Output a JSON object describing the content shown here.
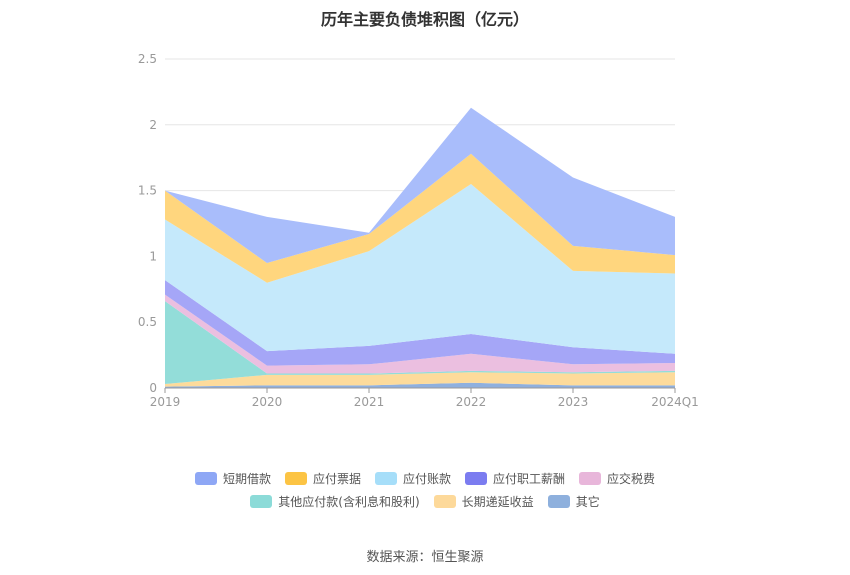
{
  "chart_data": {
    "type": "area",
    "stacked": true,
    "title": "历年主要负债堆积图（亿元）",
    "categories": [
      "2019",
      "2020",
      "2021",
      "2022",
      "2023",
      "2024Q1"
    ],
    "ylim": [
      0,
      2.5
    ],
    "yticks": [
      "0",
      "0.5",
      "1",
      "1.5",
      "2",
      "2.5"
    ],
    "grid": true,
    "legend_position": "bottom",
    "series": [
      {
        "name": "其它",
        "color": "#8fb0de",
        "values": [
          0.01,
          0.02,
          0.02,
          0.04,
          0.02,
          0.02
        ]
      },
      {
        "name": "长期递延收益",
        "color": "#fddb9b",
        "values": [
          0.02,
          0.08,
          0.08,
          0.08,
          0.09,
          0.1
        ]
      },
      {
        "name": "其他应付款(含利息和股利)",
        "color": "#93ddd9",
        "values": [
          0.63,
          0.01,
          0.01,
          0.01,
          0.01,
          0.01
        ]
      },
      {
        "name": "应交税费",
        "color": "#ebbfe0",
        "values": [
          0.05,
          0.06,
          0.07,
          0.13,
          0.06,
          0.06
        ]
      },
      {
        "name": "应付职工薪酬",
        "color": "#a5a6f7",
        "values": [
          0.11,
          0.11,
          0.14,
          0.15,
          0.13,
          0.07
        ]
      },
      {
        "name": "应付账款",
        "color": "#c5e9fb",
        "values": [
          0.46,
          0.52,
          0.72,
          1.14,
          0.58,
          0.61
        ]
      },
      {
        "name": "应付票据",
        "color": "#ffd67e",
        "values": [
          0.22,
          0.15,
          0.13,
          0.23,
          0.19,
          0.14
        ]
      },
      {
        "name": "短期借款",
        "color": "#a9bdfb",
        "values": [
          0.0,
          0.35,
          0.01,
          0.35,
          0.52,
          0.29
        ]
      }
    ]
  },
  "legend": {
    "row1": [
      {
        "label": "短期借款",
        "color": "#8ea7f5"
      },
      {
        "label": "应付票据",
        "color": "#fcc444"
      },
      {
        "label": "应付账款",
        "color": "#a6def9"
      },
      {
        "label": "应付职工薪酬",
        "color": "#7b7cf0"
      },
      {
        "label": "应交税费",
        "color": "#e8b6da"
      }
    ],
    "row2": [
      {
        "label": "其他应付款(含利息和股利)",
        "color": "#8cdbd8"
      },
      {
        "label": "长期递延收益",
        "color": "#fdd99a"
      },
      {
        "label": "其它",
        "color": "#8eb0dd"
      }
    ]
  },
  "source": "数据来源：恒生聚源"
}
